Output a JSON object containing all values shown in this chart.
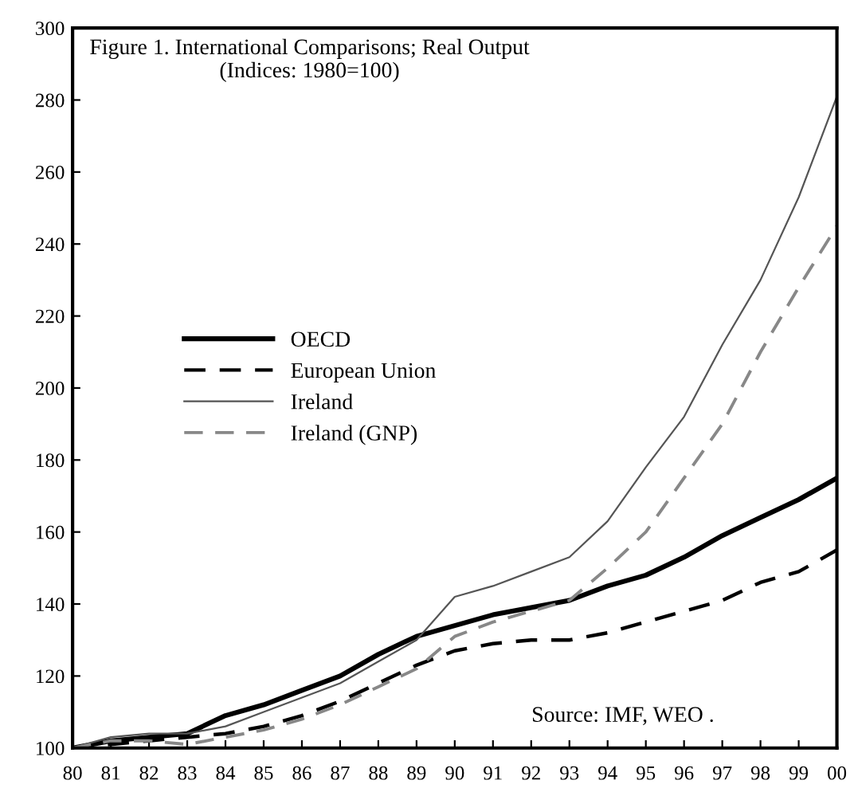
{
  "chart_data": {
    "type": "line",
    "title": "Figure 1. International Comparisons; Real Output\n(Indices: 1980=100)",
    "categories": [
      "80",
      "81",
      "82",
      "83",
      "84",
      "85",
      "86",
      "87",
      "88",
      "89",
      "90",
      "91",
      "92",
      "93",
      "94",
      "95",
      "96",
      "97",
      "98",
      "99",
      "00"
    ],
    "series": [
      {
        "name": "OECD",
        "color": "#000000",
        "line_style": "solid",
        "values": [
          100,
          102,
          103,
          104,
          109,
          112,
          116,
          120,
          126,
          131,
          134,
          137,
          139,
          141,
          145,
          148,
          153,
          159,
          164,
          169,
          175
        ]
      },
      {
        "name": "European Union",
        "color": "#000000",
        "line_style": "dashed",
        "values": [
          100,
          101,
          102,
          103,
          104,
          106,
          109,
          113,
          118,
          123,
          127,
          129,
          130,
          130,
          132,
          135,
          138,
          141,
          146,
          149,
          155
        ]
      },
      {
        "name": "Ireland",
        "color": "#555555",
        "line_style": "solid",
        "values": [
          100,
          103,
          104,
          104,
          106,
          110,
          114,
          118,
          124,
          130,
          142,
          145,
          149,
          153,
          163,
          178,
          192,
          212,
          230,
          253,
          281
        ]
      },
      {
        "name": "Ireland (GNP)",
        "color": "#888888",
        "line_style": "dashed",
        "values": [
          100,
          102,
          102,
          101,
          103,
          105,
          108,
          112,
          117,
          122,
          131,
          135,
          138,
          141,
          150,
          160,
          175,
          190,
          210,
          228,
          245
        ]
      }
    ],
    "ylim": [
      100,
      300
    ],
    "yticks": [
      100,
      120,
      140,
      160,
      180,
      200,
      220,
      240,
      260,
      280,
      300
    ],
    "grid": false,
    "legend": "center left",
    "annotations": [
      "Source: IMF, WEO ."
    ]
  }
}
